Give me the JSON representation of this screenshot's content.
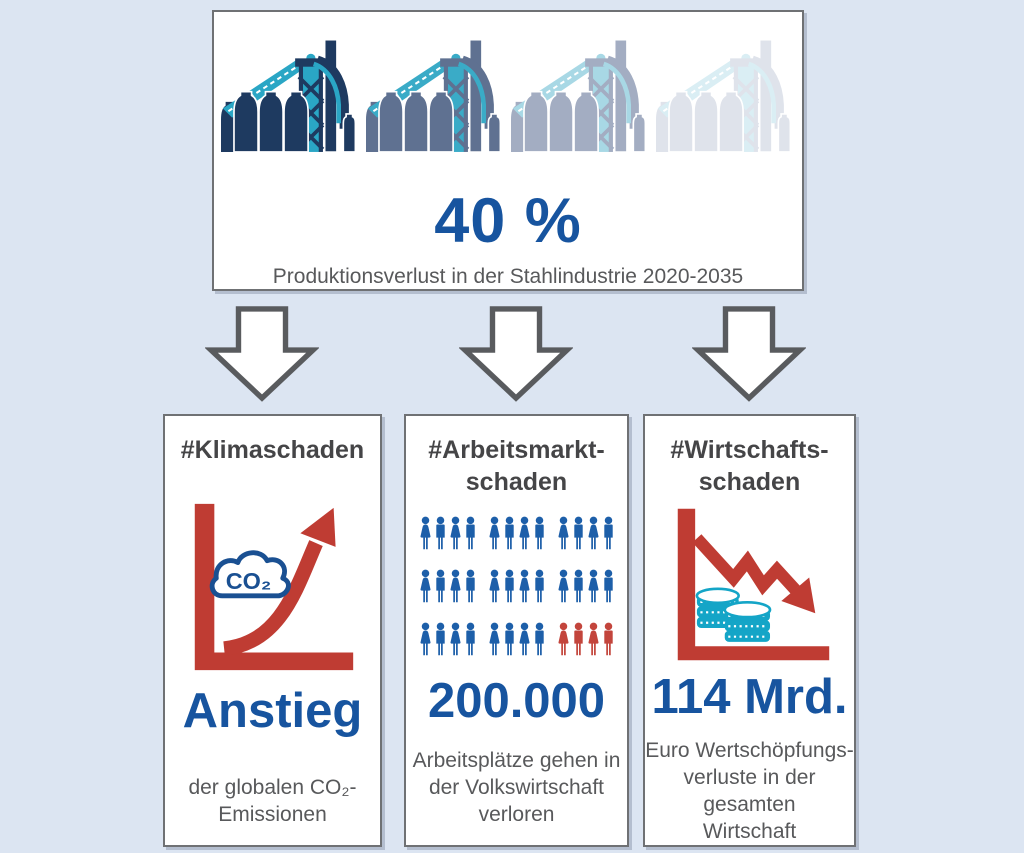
{
  "colors": {
    "bg": "#dce5f2",
    "panel_border": "#6f7174",
    "headline_blue": "#17549f",
    "text_gray": "#58595b",
    "hashtag_gray": "#454547",
    "red": "#bf3c33",
    "navy": "#1e3a60",
    "teal": "#2aa6c5",
    "people_blue": "#1d5fa9",
    "people_red": "#c3453c",
    "coin_teal": "#14a5c7",
    "cloud_blue": "#1a5092",
    "arrow_outline": "#595b5e"
  },
  "top_box": {
    "value": "40 %",
    "caption": "Produktionsverlust in der Stahlindustrie 2020-2035",
    "factory_icon": "blast-furnace-plant",
    "factory_fade": [
      {
        "navy": "#1e3a60",
        "teal": "#2aa6c5"
      },
      {
        "navy": "#5f7191",
        "teal": "#3aabc7"
      },
      {
        "navy": "#a3adc2",
        "teal": "#a8d8e5"
      },
      {
        "navy": "#dfe3eb",
        "teal": "#daeef4"
      }
    ]
  },
  "cards": [
    {
      "hashtag": "#Klimaschaden",
      "icon": "co2-cloud-rising-arrow-chart",
      "icon_label": "CO₂",
      "headline": "Anstieg",
      "caption": "der globalen CO₂-\nEmissionen"
    },
    {
      "hashtag": "#Arbeitsmarkt-\nschaden",
      "icon": "people-pictogram-grid",
      "headline": "200.000",
      "caption": "Arbeitsplätze gehen in\nder Volkswirtschaft\nverloren"
    },
    {
      "hashtag": "#Wirtschafts-\nschaden",
      "icon": "declining-arrow-coins-chart",
      "headline": "114 Mrd.",
      "caption": "Euro Wertschöpfungs-\nverluste in der gesamten\nWirtschaft"
    }
  ],
  "people_grid": {
    "pattern": [
      "woman",
      "man",
      "woman",
      "man"
    ],
    "rows": [
      [
        "blue",
        "blue",
        "blue"
      ],
      [
        "blue",
        "blue",
        "blue"
      ],
      [
        "blue",
        "blue",
        "red"
      ]
    ]
  }
}
